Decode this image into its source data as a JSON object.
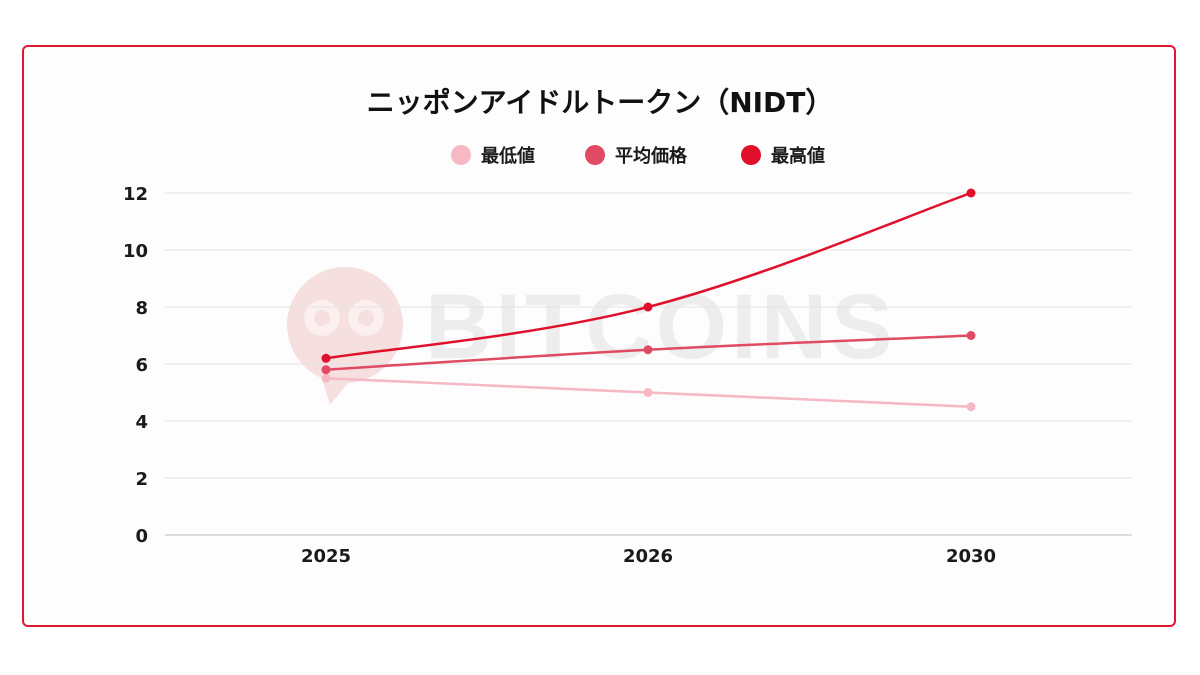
{
  "chart_data": {
    "type": "line",
    "title": "ニッポンアイドルトークン（NIDT）",
    "categories": [
      "2025",
      "2026",
      "2030"
    ],
    "series": [
      {
        "name": "最低値",
        "values": [
          5.5,
          5.0,
          4.5
        ],
        "color": "#f5b8c4"
      },
      {
        "name": "平均価格",
        "values": [
          5.8,
          6.5,
          7.0
        ],
        "color": "#e04a62"
      },
      {
        "name": "最高値",
        "values": [
          6.2,
          8.0,
          12.0
        ],
        "color": "#e0102a"
      }
    ],
    "ylim": [
      0,
      12
    ],
    "yticks": [
      "0",
      "2",
      "4",
      "6",
      "8",
      "10",
      "12"
    ],
    "xlabel": "",
    "ylabel": "",
    "grid": true,
    "legend": "top-center"
  },
  "watermark": {
    "text": "BITCOINS",
    "logo": "bitcoins-logo-icon"
  }
}
